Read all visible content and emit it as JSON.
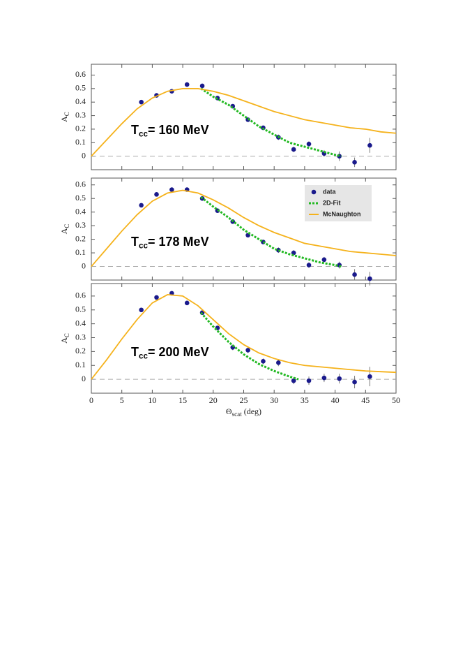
{
  "chart_data": [
    {
      "type": "scatter",
      "xlim": [
        0,
        50
      ],
      "ylim": [
        -0.1,
        0.68
      ],
      "xticks": [
        0,
        5,
        10,
        15,
        20,
        25,
        30,
        35,
        40,
        45,
        50
      ],
      "xtick_labels": false,
      "yticks": [
        0,
        0.1,
        0.2,
        0.3,
        0.4,
        0.5,
        0.6
      ],
      "reference_line": 0,
      "y_label": {
        "main": "A",
        "sub": "C"
      },
      "annotation": {
        "main": "T",
        "sub": "cc",
        "rest": "= 160 MeV"
      },
      "series": [
        {
          "color": "#1a1a8c",
          "x": [
            8.2,
            10.7,
            13.2,
            15.7,
            18.2,
            20.7,
            23.2,
            25.7,
            28.2,
            30.7,
            33.2,
            35.7,
            38.2,
            40.7,
            43.2,
            45.7
          ],
          "values": [
            0.4,
            0.45,
            0.48,
            0.53,
            0.52,
            0.43,
            0.37,
            0.27,
            0.21,
            0.14,
            0.05,
            0.09,
            0.02,
            0.0,
            -0.045,
            0.08
          ],
          "errors": [
            0.01,
            0.01,
            0.01,
            0.01,
            0.01,
            0.01,
            0.015,
            0.015,
            0.015,
            0.02,
            0.02,
            0.02,
            0.025,
            0.035,
            0.035,
            0.055
          ]
        },
        {
          "mark": "line",
          "style": "dotted",
          "color": "#22b922",
          "x": [
            18,
            20,
            22.5,
            25,
            27.5,
            30,
            32.5,
            35,
            37.5,
            40,
            41
          ],
          "values": [
            0.5,
            0.44,
            0.38,
            0.3,
            0.22,
            0.16,
            0.1,
            0.07,
            0.04,
            0.01,
            0.0
          ]
        },
        {
          "mark": "line",
          "color": "#f5b21b",
          "x": [
            0,
            2.5,
            5,
            7.5,
            10,
            12.5,
            15,
            17.5,
            20,
            22.5,
            25,
            27.5,
            30,
            32.5,
            35,
            37.5,
            40,
            42.5,
            45,
            47.5,
            50
          ],
          "values": [
            0,
            0.12,
            0.24,
            0.35,
            0.43,
            0.48,
            0.5,
            0.5,
            0.48,
            0.45,
            0.41,
            0.37,
            0.33,
            0.3,
            0.27,
            0.25,
            0.23,
            0.21,
            0.2,
            0.18,
            0.17
          ]
        }
      ]
    },
    {
      "type": "scatter",
      "xlim": [
        0,
        50
      ],
      "ylim": [
        -0.1,
        0.65
      ],
      "xticks": [
        0,
        5,
        10,
        15,
        20,
        25,
        30,
        35,
        40,
        45,
        50
      ],
      "xtick_labels": false,
      "yticks": [
        0,
        0.1,
        0.2,
        0.3,
        0.4,
        0.5,
        0.6
      ],
      "reference_line": 0,
      "legend": "upper right",
      "y_label": {
        "main": "A",
        "sub": "C"
      },
      "annotation": {
        "main": "T",
        "sub": "cc",
        "rest": "= 178 MeV"
      },
      "series": [
        {
          "name": "data",
          "color": "#1a1a8c",
          "x": [
            8.2,
            10.7,
            13.2,
            15.7,
            18.2,
            20.7,
            23.2,
            25.7,
            28.2,
            30.7,
            33.2,
            35.7,
            38.2,
            40.7,
            43.2,
            45.7
          ],
          "values": [
            0.45,
            0.53,
            0.565,
            0.565,
            0.5,
            0.41,
            0.33,
            0.23,
            0.18,
            0.12,
            0.1,
            0.01,
            0.05,
            0.01,
            -0.06,
            -0.09
          ],
          "errors": [
            0.01,
            0.01,
            0.01,
            0.01,
            0.01,
            0.01,
            0.015,
            0.015,
            0.015,
            0.02,
            0.02,
            0.02,
            0.02,
            0.025,
            0.04,
            0.05
          ]
        },
        {
          "name": "2D-Fit",
          "mark": "line",
          "style": "dotted",
          "color": "#22b922",
          "x": [
            18,
            20,
            22.5,
            25,
            27.5,
            30,
            32.5,
            35,
            37.5,
            40,
            41
          ],
          "values": [
            0.51,
            0.44,
            0.36,
            0.27,
            0.2,
            0.13,
            0.09,
            0.06,
            0.03,
            0.01,
            0.0
          ]
        },
        {
          "name": "McNaughton",
          "mark": "line",
          "color": "#f5b21b",
          "x": [
            0,
            2.5,
            5,
            7.5,
            10,
            12.5,
            15,
            17.5,
            20,
            22.5,
            25,
            27.5,
            30,
            32.5,
            35,
            37.5,
            40,
            42.5,
            45,
            47.5,
            50
          ],
          "values": [
            0,
            0.13,
            0.26,
            0.38,
            0.48,
            0.54,
            0.56,
            0.54,
            0.49,
            0.43,
            0.36,
            0.3,
            0.25,
            0.21,
            0.17,
            0.15,
            0.13,
            0.11,
            0.1,
            0.09,
            0.08
          ]
        }
      ]
    },
    {
      "type": "scatter",
      "xlim": [
        0,
        50
      ],
      "ylim": [
        -0.1,
        0.69
      ],
      "xticks": [
        0,
        5,
        10,
        15,
        20,
        25,
        30,
        35,
        40,
        45,
        50
      ],
      "yticks": [
        0,
        0.1,
        0.2,
        0.3,
        0.4,
        0.5,
        0.6
      ],
      "reference_line": 0,
      "y_label": {
        "main": "A",
        "sub": "C"
      },
      "x_label": {
        "main": "Θ",
        "sub": "scat",
        "rest": " (deg)"
      },
      "annotation": {
        "main": "T",
        "sub": "cc",
        "rest": "= 200 MeV"
      },
      "series": [
        {
          "color": "#1a1a8c",
          "x": [
            8.2,
            10.7,
            13.2,
            15.7,
            18.2,
            20.7,
            23.2,
            25.7,
            28.2,
            30.7,
            33.2,
            35.7,
            38.2,
            40.7,
            43.2,
            45.7
          ],
          "values": [
            0.5,
            0.59,
            0.62,
            0.55,
            0.48,
            0.37,
            0.23,
            0.21,
            0.13,
            0.12,
            -0.01,
            -0.01,
            0.01,
            0.005,
            -0.02,
            0.02
          ],
          "errors": [
            0.01,
            0.01,
            0.015,
            0.015,
            0.015,
            0.015,
            0.02,
            0.02,
            0.02,
            0.025,
            0.025,
            0.03,
            0.03,
            0.035,
            0.045,
            0.07
          ]
        },
        {
          "mark": "line",
          "style": "dotted",
          "color": "#22b922",
          "x": [
            18,
            20,
            22.5,
            25,
            27.5,
            30,
            32.5,
            34
          ],
          "values": [
            0.48,
            0.38,
            0.27,
            0.18,
            0.11,
            0.06,
            0.02,
            0.0
          ]
        },
        {
          "mark": "line",
          "color": "#f5b21b",
          "x": [
            0,
            2.5,
            5,
            7.5,
            10,
            12.5,
            15,
            17.5,
            20,
            22.5,
            25,
            27.5,
            30,
            32.5,
            35,
            37.5,
            40,
            42.5,
            45,
            47.5,
            50
          ],
          "values": [
            0,
            0.14,
            0.29,
            0.43,
            0.55,
            0.61,
            0.6,
            0.53,
            0.43,
            0.33,
            0.25,
            0.19,
            0.15,
            0.12,
            0.1,
            0.09,
            0.08,
            0.07,
            0.06,
            0.055,
            0.05
          ]
        }
      ]
    }
  ]
}
